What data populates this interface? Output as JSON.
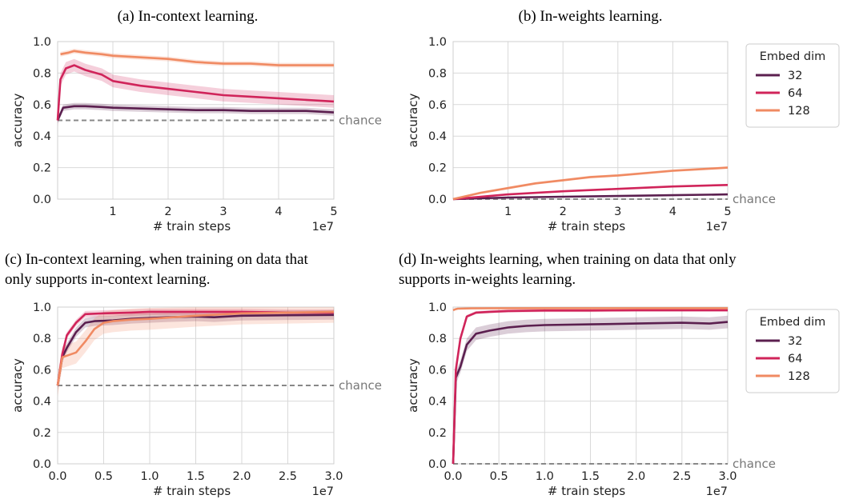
{
  "colors": {
    "32": "#5b1f4f",
    "64": "#d0245a",
    "128": "#f08a62",
    "chance": "#888888"
  },
  "chart_data": [
    {
      "id": "a",
      "type": "line",
      "title": "(a) In-context learning.",
      "xlabel": "# train steps",
      "ylabel": "accuracy",
      "x_multiplier": "1e7",
      "xlim": [
        0.0,
        5.0
      ],
      "ylim": [
        0.0,
        1.0
      ],
      "xticks": [
        "1",
        "2",
        "3",
        "4",
        "5"
      ],
      "yticks": [
        "0.0",
        "0.2",
        "0.4",
        "0.6",
        "0.8",
        "1.0"
      ],
      "chance": {
        "label": "chance",
        "value": 0.5
      },
      "grid": true,
      "series": [
        {
          "name": "32",
          "x": [
            0.0,
            0.1,
            0.3,
            0.5,
            0.8,
            1.0,
            1.5,
            2.0,
            2.5,
            3.0,
            3.5,
            4.0,
            4.5,
            5.0
          ],
          "y": [
            0.5,
            0.58,
            0.59,
            0.59,
            0.585,
            0.58,
            0.575,
            0.57,
            0.565,
            0.565,
            0.56,
            0.56,
            0.56,
            0.55
          ],
          "band": 0.02
        },
        {
          "name": "64",
          "x": [
            0.0,
            0.05,
            0.15,
            0.3,
            0.5,
            0.8,
            1.0,
            1.5,
            2.0,
            2.5,
            3.0,
            3.5,
            4.0,
            4.5,
            5.0
          ],
          "y": [
            0.5,
            0.76,
            0.83,
            0.85,
            0.82,
            0.79,
            0.75,
            0.72,
            0.7,
            0.68,
            0.66,
            0.65,
            0.64,
            0.63,
            0.62
          ],
          "band": 0.04
        },
        {
          "name": "128",
          "x": [
            0.05,
            0.2,
            0.3,
            0.5,
            0.8,
            1.0,
            1.5,
            2.0,
            2.5,
            3.0,
            3.5,
            4.0,
            4.5,
            5.0
          ],
          "y": [
            0.92,
            0.93,
            0.94,
            0.93,
            0.92,
            0.91,
            0.9,
            0.89,
            0.87,
            0.86,
            0.86,
            0.85,
            0.85,
            0.85
          ],
          "band": 0.015
        }
      ]
    },
    {
      "id": "b",
      "type": "line",
      "title": "(b) In-weights learning.",
      "xlabel": "# train steps",
      "ylabel": "accuracy",
      "x_multiplier": "1e7",
      "xlim": [
        0.0,
        5.0
      ],
      "ylim": [
        0.0,
        1.0
      ],
      "xticks": [
        "1",
        "2",
        "3",
        "4",
        "5"
      ],
      "yticks": [
        "0.0",
        "0.2",
        "0.4",
        "0.6",
        "0.8",
        "1.0"
      ],
      "chance": {
        "label": "chance",
        "value": 0.0
      },
      "grid": true,
      "legend": {
        "title": "Embed dim",
        "entries": [
          "32",
          "64",
          "128"
        ],
        "placement": "right"
      },
      "series": [
        {
          "name": "32",
          "x": [
            0.0,
            1.0,
            2.0,
            3.0,
            4.0,
            5.0
          ],
          "y": [
            0.0,
            0.01,
            0.015,
            0.02,
            0.025,
            0.03
          ],
          "band": 0.003
        },
        {
          "name": "64",
          "x": [
            0.0,
            1.0,
            2.0,
            3.0,
            4.0,
            5.0
          ],
          "y": [
            0.0,
            0.03,
            0.05,
            0.065,
            0.08,
            0.09
          ],
          "band": 0.005
        },
        {
          "name": "128",
          "x": [
            0.0,
            0.5,
            1.0,
            1.5,
            2.0,
            2.5,
            3.0,
            3.5,
            4.0,
            4.5,
            5.0
          ],
          "y": [
            0.0,
            0.04,
            0.07,
            0.1,
            0.12,
            0.14,
            0.15,
            0.165,
            0.18,
            0.19,
            0.2
          ],
          "band": 0.008
        }
      ]
    },
    {
      "id": "c",
      "type": "line",
      "title": "(c) In-context learning, when training on data that only supports in-context learning.",
      "title_lines": [
        "(c) In-context learning, when training on data that",
        "only supports in-context learning."
      ],
      "xlabel": "# train steps",
      "ylabel": "accuracy",
      "x_multiplier": "1e7",
      "xlim": [
        0.0,
        3.0
      ],
      "ylim": [
        0.0,
        1.0
      ],
      "xticks": [
        "0.0",
        "0.5",
        "1.0",
        "1.5",
        "2.0",
        "2.5",
        "3.0"
      ],
      "yticks": [
        "0.0",
        "0.2",
        "0.4",
        "0.6",
        "0.8",
        "1.0"
      ],
      "chance": {
        "label": "chance",
        "value": 0.5
      },
      "grid": true,
      "series": [
        {
          "name": "32",
          "x": [
            0.0,
            0.05,
            0.1,
            0.2,
            0.3,
            0.4,
            0.6,
            0.8,
            1.0,
            1.2,
            1.5,
            1.7,
            2.0,
            2.5,
            3.0
          ],
          "y": [
            0.5,
            0.68,
            0.74,
            0.84,
            0.9,
            0.91,
            0.915,
            0.925,
            0.93,
            0.935,
            0.94,
            0.935,
            0.945,
            0.948,
            0.95
          ],
          "band": 0.03
        },
        {
          "name": "64",
          "x": [
            0.0,
            0.05,
            0.1,
            0.2,
            0.3,
            0.5,
            0.8,
            1.0,
            1.5,
            2.0,
            2.5,
            3.0
          ],
          "y": [
            0.5,
            0.7,
            0.82,
            0.9,
            0.955,
            0.96,
            0.965,
            0.97,
            0.97,
            0.97,
            0.965,
            0.965
          ],
          "band": 0.02
        },
        {
          "name": "128",
          "x": [
            0.0,
            0.05,
            0.1,
            0.2,
            0.3,
            0.4,
            0.5,
            0.6,
            0.8,
            1.0,
            1.5,
            2.0,
            2.5,
            3.0
          ],
          "y": [
            0.5,
            0.68,
            0.69,
            0.71,
            0.78,
            0.86,
            0.9,
            0.91,
            0.92,
            0.925,
            0.945,
            0.96,
            0.965,
            0.97
          ],
          "band": 0.07
        }
      ]
    },
    {
      "id": "d",
      "type": "line",
      "title": "(d) In-weights learning, when training on data that only supports in-weights learning.",
      "title_lines": [
        "(d) In-weights learning, when training on data that only",
        "supports in-weights learning."
      ],
      "xlabel": "# train steps",
      "ylabel": "accuracy",
      "x_multiplier": "1e7",
      "xlim": [
        0.0,
        3.0
      ],
      "ylim": [
        0.0,
        1.0
      ],
      "xticks": [
        "0.0",
        "0.5",
        "1.0",
        "1.5",
        "2.0",
        "2.5",
        "3.0"
      ],
      "yticks": [
        "0.0",
        "0.2",
        "0.4",
        "0.6",
        "0.8",
        "1.0"
      ],
      "chance": {
        "label": "chance",
        "value": 0.0
      },
      "grid": true,
      "legend": {
        "title": "Embed dim",
        "entries": [
          "32",
          "64",
          "128"
        ],
        "placement": "right"
      },
      "series": [
        {
          "name": "32",
          "x": [
            0.0,
            0.03,
            0.08,
            0.15,
            0.25,
            0.4,
            0.6,
            0.8,
            1.0,
            1.5,
            2.0,
            2.5,
            2.8,
            3.0
          ],
          "y": [
            0.0,
            0.55,
            0.62,
            0.76,
            0.83,
            0.85,
            0.87,
            0.88,
            0.885,
            0.89,
            0.895,
            0.9,
            0.895,
            0.905
          ],
          "band": 0.04
        },
        {
          "name": "64",
          "x": [
            0.0,
            0.03,
            0.08,
            0.15,
            0.25,
            0.4,
            0.6,
            1.0,
            1.5,
            2.0,
            2.5,
            3.0
          ],
          "y": [
            0.0,
            0.6,
            0.8,
            0.94,
            0.965,
            0.97,
            0.975,
            0.978,
            0.978,
            0.98,
            0.98,
            0.98
          ],
          "band": 0.01
        },
        {
          "name": "128",
          "x": [
            0.0,
            0.02,
            0.05,
            0.2,
            0.5,
            1.0,
            1.5,
            2.0,
            2.5,
            3.0
          ],
          "y": [
            0.98,
            0.985,
            0.99,
            0.992,
            0.993,
            0.993,
            0.993,
            0.993,
            0.993,
            0.993
          ],
          "band": 0.003
        }
      ]
    }
  ]
}
